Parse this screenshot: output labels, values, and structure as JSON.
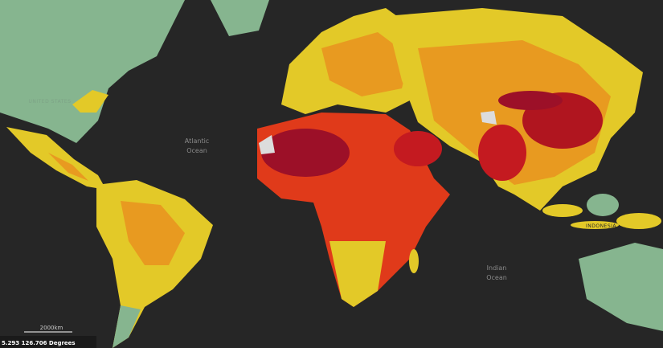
{
  "map": {
    "labels": {
      "atlantic": [
        "Atlantic",
        "Ocean"
      ],
      "indian": [
        "Indian",
        "Ocean"
      ],
      "united_states": "UNITED STATES",
      "indonesia": "INDONESIA"
    },
    "scale_bar": "2000km",
    "coordinates": "5.293 126.706 Degrees"
  }
}
